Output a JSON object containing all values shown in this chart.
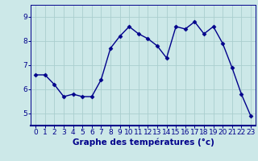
{
  "x": [
    0,
    1,
    2,
    3,
    4,
    5,
    6,
    7,
    8,
    9,
    10,
    11,
    12,
    13,
    14,
    15,
    16,
    17,
    18,
    19,
    20,
    21,
    22,
    23
  ],
  "y": [
    6.6,
    6.6,
    6.2,
    5.7,
    5.8,
    5.7,
    5.7,
    6.4,
    7.7,
    8.2,
    8.6,
    8.3,
    8.1,
    7.8,
    7.3,
    8.6,
    8.5,
    8.8,
    8.3,
    8.6,
    7.9,
    6.9,
    5.8,
    4.9
  ],
  "line_color": "#00008B",
  "marker": "D",
  "markersize": 2.5,
  "linewidth": 1.0,
  "bg_color": "#cce8e8",
  "grid_color": "#aacece",
  "xlabel": "Graphe des températures (°c)",
  "xlabel_fontsize": 7.5,
  "tick_fontsize": 6.5,
  "ylim": [
    4.5,
    9.5
  ],
  "xlim": [
    -0.5,
    23.5
  ],
  "yticks": [
    5,
    6,
    7,
    8,
    9
  ],
  "xticks": [
    0,
    1,
    2,
    3,
    4,
    5,
    6,
    7,
    8,
    9,
    10,
    11,
    12,
    13,
    14,
    15,
    16,
    17,
    18,
    19,
    20,
    21,
    22,
    23
  ],
  "spine_color": "#00008B",
  "axis_label_color": "#00008B",
  "tick_color": "#00008B"
}
